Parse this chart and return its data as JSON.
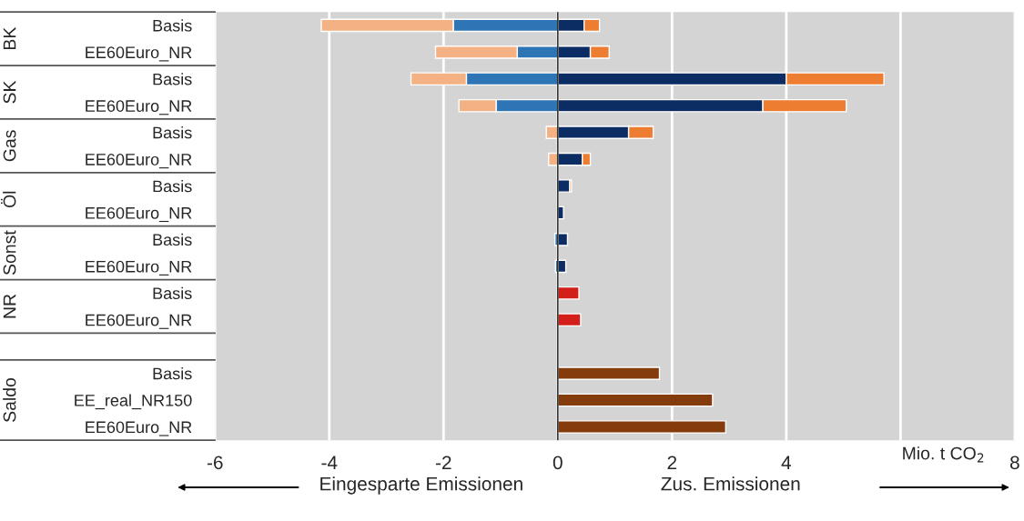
{
  "chart_data": {
    "type": "bar",
    "orientation": "horizontal",
    "stacked": true,
    "categories": [
      "Basis",
      "EE60Euro_NR",
      "Basis",
      "EE60Euro_NR",
      "Basis",
      "EE60Euro_NR",
      "Basis",
      "EE60Euro_NR",
      "Basis",
      "EE60Euro_NR",
      "Basis",
      "EE60Euro_NR",
      null,
      "Basis",
      "EE_real_NR150",
      "EE60Euro_NR"
    ],
    "series": [
      {
        "color": "#0c2d64",
        "values": [
          0.46,
          0.57,
          4.0,
          3.59,
          1.24,
          0.43,
          0.21,
          0.1,
          0.17,
          0.14,
          null,
          null,
          null,
          null,
          null,
          null
        ]
      },
      {
        "color": "#ed7d31",
        "values": [
          0.27,
          0.33,
          1.71,
          1.46,
          0.43,
          0.14,
          0.03,
          null,
          null,
          null,
          null,
          null,
          null,
          null,
          null,
          null
        ]
      },
      {
        "color": "#2e75b6",
        "values": [
          -1.83,
          -0.71,
          -1.6,
          -1.08,
          null,
          null,
          null,
          null,
          -0.05,
          -0.04,
          null,
          null,
          null,
          null,
          null,
          null
        ]
      },
      {
        "color": "#f4b183",
        "values": [
          -2.31,
          -1.43,
          -0.97,
          -0.65,
          -0.2,
          -0.16,
          null,
          null,
          null,
          null,
          null,
          null,
          null,
          null,
          null,
          null
        ]
      },
      {
        "color": "#d21f1a",
        "values": [
          null,
          null,
          null,
          null,
          null,
          null,
          null,
          null,
          null,
          null,
          0.37,
          0.4,
          null,
          null,
          null,
          null
        ]
      },
      {
        "color": "#843c0c",
        "values": [
          null,
          null,
          null,
          null,
          null,
          null,
          null,
          null,
          null,
          null,
          null,
          null,
          null,
          1.78,
          2.71,
          2.94
        ]
      }
    ],
    "xlim": [
      -6,
      8
    ],
    "xticks": [
      -6,
      -4,
      -2,
      0,
      2,
      4,
      {
        "value": 6,
        "label": null
      },
      8
    ],
    "xlabel": "Mio. t CO$_{2}$",
    "grid": "x",
    "ref_lines": [
      {
        "axis": "x",
        "value": 0,
        "color": "#333333"
      }
    ],
    "annotations": [
      "BK",
      "SK",
      "Gas",
      "Öl",
      "Sonst",
      "NR",
      "Saldo",
      "Eingesparte Emissionen",
      "Zus. Emissionen"
    ]
  }
}
